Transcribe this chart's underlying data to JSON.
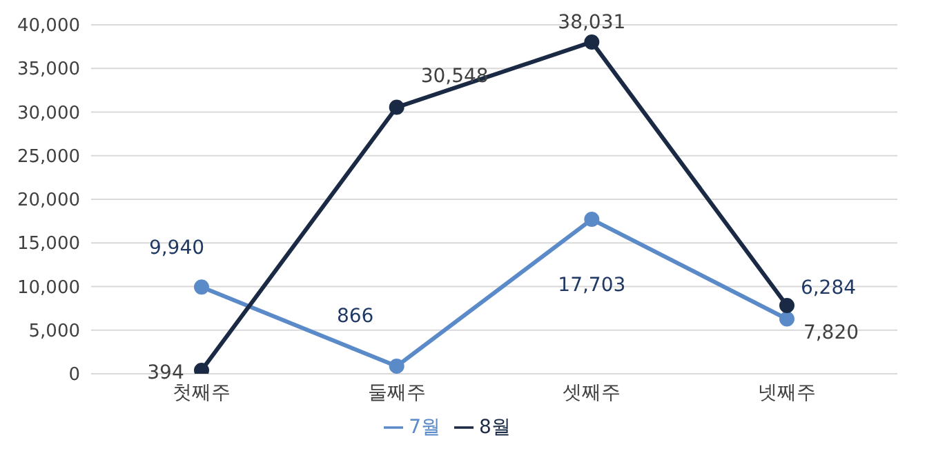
{
  "chart_data": {
    "type": "line",
    "categories": [
      "첫째주",
      "둘째주",
      "셋째주",
      "넷째주"
    ],
    "series": [
      {
        "name": "7월",
        "color": "#5b8ac8",
        "values": [
          9940,
          866,
          17703,
          6284
        ],
        "value_labels": [
          "9,940",
          "866",
          "17,703",
          "6,284"
        ]
      },
      {
        "name": "8월",
        "color": "#1b2a44",
        "values": [
          394,
          30548,
          38031,
          7820
        ],
        "value_labels": [
          "394",
          "30,548",
          "38,031",
          "7,820"
        ]
      }
    ],
    "ylim": [
      0,
      40000
    ],
    "yticks": [
      0,
      {
        "value": 5000,
        "label": "5,000"
      },
      {
        "value": 10000,
        "label": "10,000"
      },
      {
        "value": 15000,
        "label": "15,000"
      },
      {
        "value": 20000,
        "label": "20,000"
      },
      {
        "value": 25000,
        "label": "25,000"
      },
      {
        "value": 30000,
        "label": "30,000"
      },
      {
        "value": 35000,
        "label": "35,000"
      },
      {
        "value": 40000,
        "label": "40,000"
      }
    ],
    "grid": "y",
    "legend": "bottom",
    "marker": "circle",
    "line_style": "solid"
  }
}
